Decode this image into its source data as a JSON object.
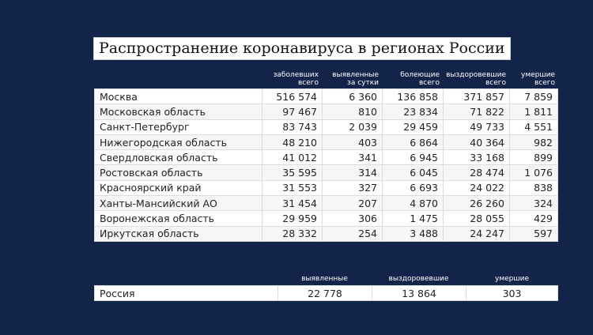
{
  "title": "Распространение коронавируса в регионах России",
  "columns": [
    {
      "line1": "заболевших",
      "line2": "всего"
    },
    {
      "line1": "выявленные",
      "line2": "за сутки"
    },
    {
      "line1": "болеющие",
      "line2": "всего"
    },
    {
      "line1": "выздоровевшие",
      "line2": "всего"
    },
    {
      "line1": "умершие",
      "line2": "всего"
    }
  ],
  "rows": [
    {
      "region": "Москва",
      "v": [
        "516 574",
        "6 360",
        "136 858",
        "371 857",
        "7 859"
      ]
    },
    {
      "region": "Московская область",
      "v": [
        "97 467",
        "810",
        "23 834",
        "71 822",
        "1 811"
      ]
    },
    {
      "region": "Санкт-Петербург",
      "v": [
        "83 743",
        "2 039",
        "29 459",
        "49 733",
        "4 551"
      ]
    },
    {
      "region": "Нижегородская область",
      "v": [
        "48 210",
        "403",
        "6 864",
        "40 364",
        "982"
      ]
    },
    {
      "region": "Свердловская область",
      "v": [
        "41 012",
        "341",
        "6 945",
        "33 168",
        "899"
      ]
    },
    {
      "region": "Ростовская область",
      "v": [
        "35 595",
        "314",
        "6 045",
        "28 474",
        "1 076"
      ]
    },
    {
      "region": "Красноярский край",
      "v": [
        "31 553",
        "327",
        "6 693",
        "24 022",
        "838"
      ]
    },
    {
      "region": "Ханты-Мансийский АО",
      "v": [
        "31 454",
        "207",
        "4 870",
        "26 260",
        "324"
      ]
    },
    {
      "region": "Воронежская область",
      "v": [
        "29 959",
        "306",
        "1 475",
        "28 055",
        "429"
      ]
    },
    {
      "region": "Иркутская область",
      "v": [
        "28 332",
        "254",
        "3 488",
        "24 247",
        "597"
      ]
    }
  ],
  "total": {
    "headers": [
      "выявленные",
      "выздоровевшие",
      "умершие"
    ],
    "region": "Россия",
    "v": [
      "22 778",
      "13 864",
      "303"
    ]
  }
}
